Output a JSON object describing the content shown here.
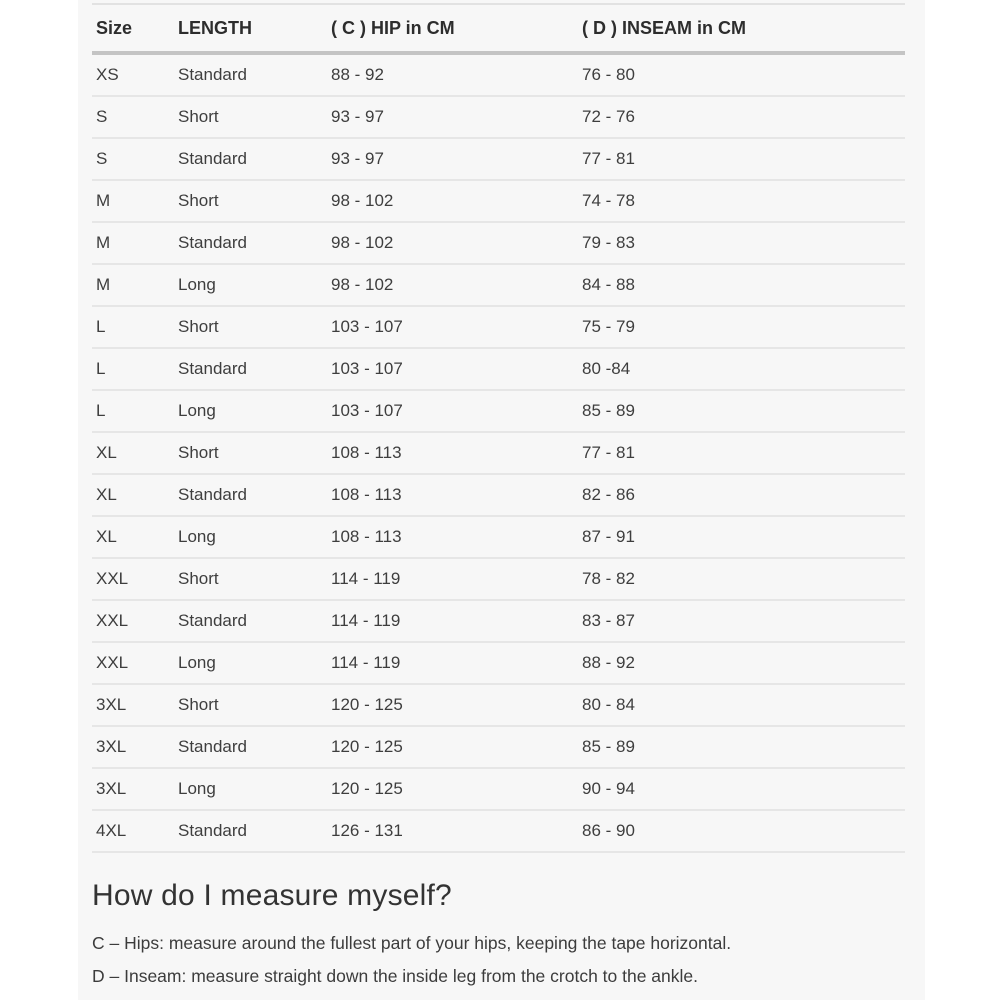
{
  "table": {
    "headers": [
      "Size",
      "LENGTH",
      "( C ) HIP in CM",
      "( D ) INSEAM in CM"
    ],
    "rows": [
      [
        "XS",
        "Standard",
        "88 - 92",
        "76 - 80"
      ],
      [
        "S",
        "Short",
        "93 - 97",
        "72 - 76"
      ],
      [
        "S",
        "Standard",
        "93 - 97",
        "77 - 81"
      ],
      [
        "M",
        "Short",
        "98 - 102",
        "74 - 78"
      ],
      [
        "M",
        "Standard",
        "98 - 102",
        "79 - 83"
      ],
      [
        "M",
        "Long",
        "98 - 102",
        "84 - 88"
      ],
      [
        "L",
        "Short",
        "103 - 107",
        "75 - 79"
      ],
      [
        "L",
        "Standard",
        "103 - 107",
        "80 -84"
      ],
      [
        "L",
        "Long",
        "103 - 107",
        "85 - 89"
      ],
      [
        "XL",
        "Short",
        "108 - 113",
        "77 - 81"
      ],
      [
        "XL",
        "Standard",
        "108 - 113",
        "82 - 86"
      ],
      [
        "XL",
        "Long",
        "108 - 113",
        "87 - 91"
      ],
      [
        "XXL",
        "Short",
        "114 - 119",
        "78 - 82"
      ],
      [
        "XXL",
        "Standard",
        "114 - 119",
        "83 - 87"
      ],
      [
        "XXL",
        "Long",
        "114 - 119",
        "88 - 92"
      ],
      [
        "3XL",
        "Short",
        "120 - 125",
        "80 - 84"
      ],
      [
        "3XL",
        "Standard",
        "120 - 125",
        "85 - 89"
      ],
      [
        "3XL",
        "Long",
        "120 - 125",
        "90 - 94"
      ],
      [
        "4XL",
        "Standard",
        "126 - 131",
        "86 - 90"
      ]
    ]
  },
  "section": {
    "heading": "How do I measure myself?",
    "lines": [
      "C – Hips: measure around the fullest part of your hips, keeping the tape horizontal.",
      "D – Inseam: measure straight down the inside leg from the crotch to the ankle."
    ]
  },
  "colors": {
    "content_background": "#f7f7f7",
    "page_background": "#ffffff",
    "header_text": "#2d2d2d",
    "body_text": "#3e3e3e",
    "header_rule": "#c4c4c4",
    "row_rule": "#e6e6e6",
    "top_rule": "#e2e2e2"
  }
}
